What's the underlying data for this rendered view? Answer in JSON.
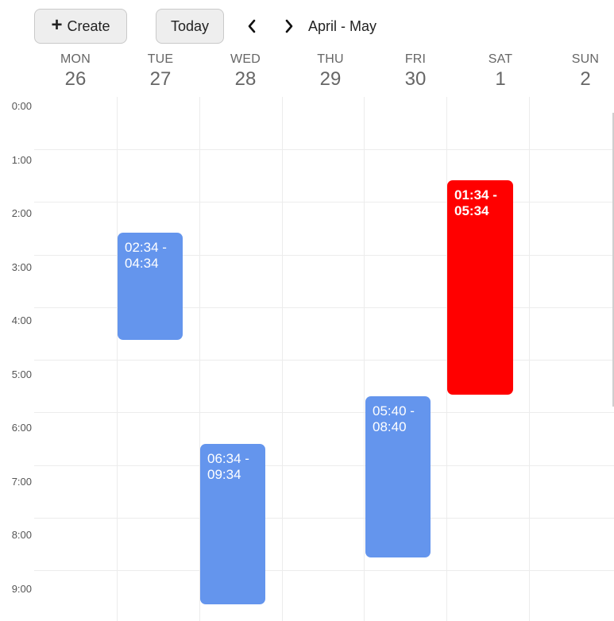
{
  "toolbar": {
    "create_label": "Create",
    "create_icon": "plus-icon",
    "today_label": "Today",
    "prev_icon": "chevron-left-icon",
    "next_icon": "chevron-right-icon",
    "range_label": "April - May"
  },
  "days": [
    {
      "dow": "MON",
      "num": "26"
    },
    {
      "dow": "TUE",
      "num": "27"
    },
    {
      "dow": "WED",
      "num": "28"
    },
    {
      "dow": "THU",
      "num": "29"
    },
    {
      "dow": "FRI",
      "num": "30"
    },
    {
      "dow": "SAT",
      "num": "1"
    },
    {
      "dow": "SUN",
      "num": "2"
    }
  ],
  "hours": [
    "0:00",
    "1:00",
    "2:00",
    "3:00",
    "4:00",
    "5:00",
    "6:00",
    "7:00",
    "8:00",
    "9:00"
  ],
  "events": [
    {
      "day": "TUE 27",
      "label": "02:34 - 04:34",
      "color": "#6495ed"
    },
    {
      "day": "WED 28",
      "label": "06:34 - 09:34",
      "color": "#6495ed"
    },
    {
      "day": "FRI 30",
      "label": "05:40 - 08:40",
      "color": "#6495ed"
    },
    {
      "day": "SAT 1",
      "label": "01:34 - 05:34",
      "color": "#ff0000"
    }
  ],
  "colors": {
    "event_blue": "#6495ed",
    "event_red": "#ff0000",
    "grid_line": "#ececec"
  }
}
